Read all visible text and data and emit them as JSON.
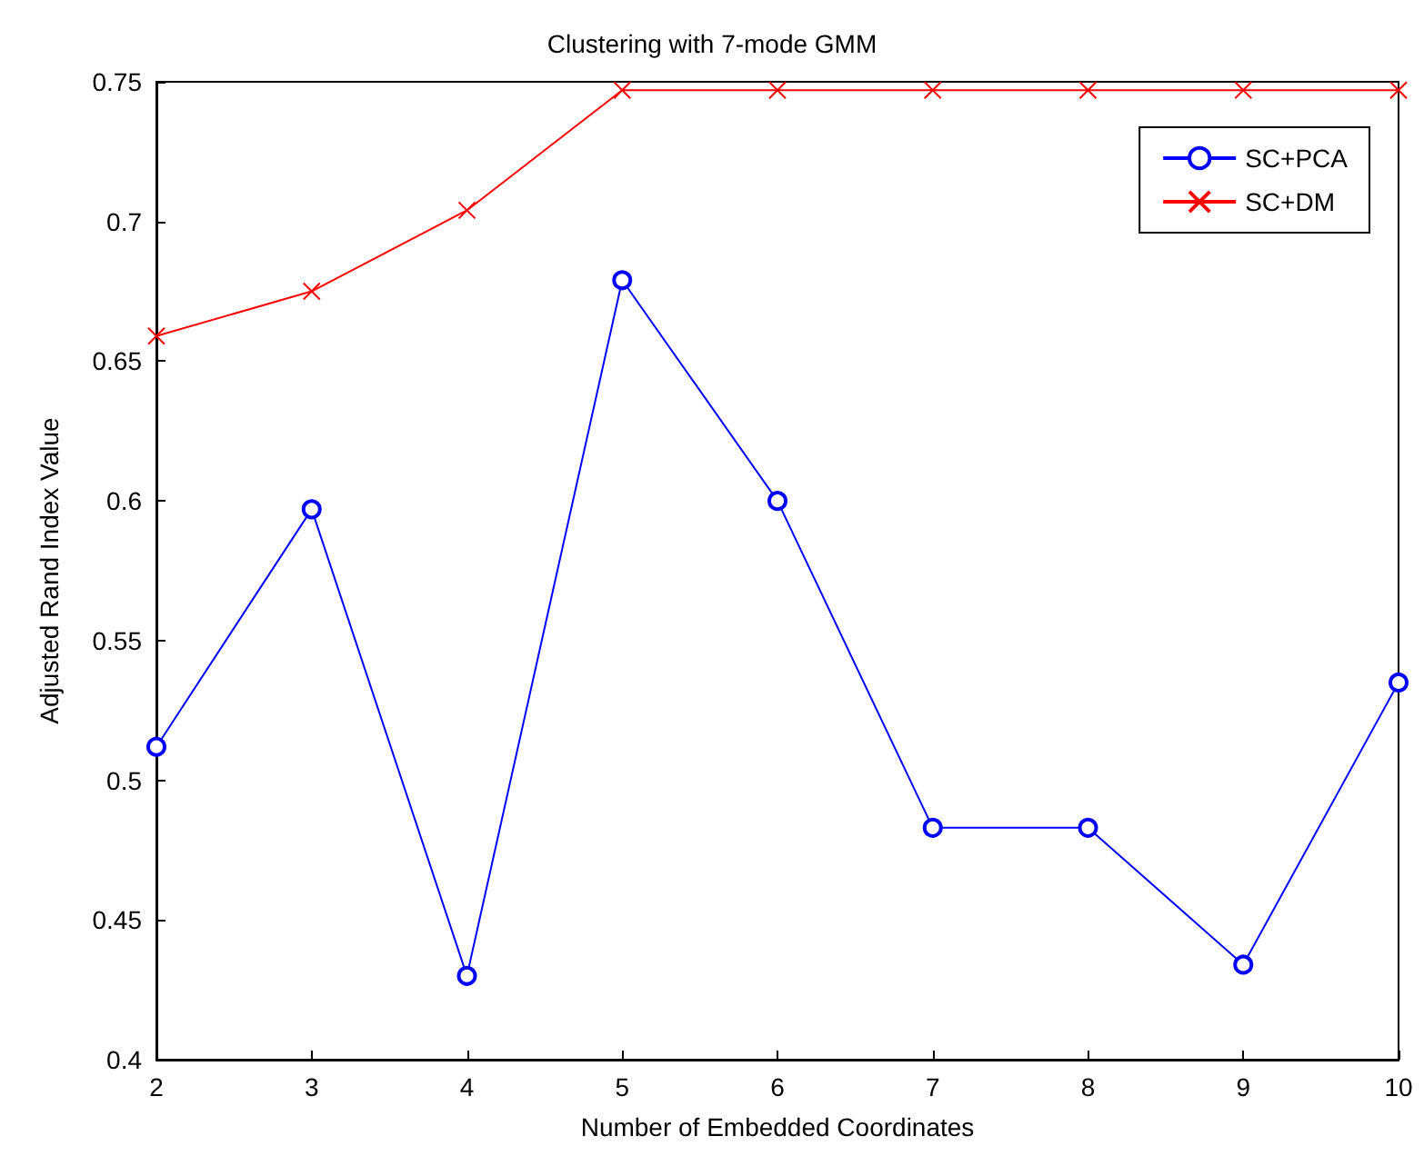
{
  "chart_data": {
    "type": "line",
    "title": "Clustering with 7-mode GMM",
    "xlabel": "Number of Embedded Coordinates",
    "ylabel": "Adjusted Rand Index Value",
    "x": [
      2,
      3,
      4,
      5,
      6,
      7,
      8,
      9,
      10
    ],
    "series": [
      {
        "name": "SC+PCA",
        "color": "#0000ff",
        "marker": "circle",
        "values": [
          0.512,
          0.597,
          0.43,
          0.679,
          0.6,
          0.483,
          0.483,
          0.434,
          0.535
        ]
      },
      {
        "name": "SC+DM",
        "color": "#ff0000",
        "marker": "cross",
        "values": [
          0.659,
          0.675,
          0.704,
          0.747,
          0.747,
          0.747,
          0.747,
          0.747,
          0.747
        ]
      }
    ],
    "xlim": [
      2,
      10
    ],
    "xticks": [
      2,
      3,
      4,
      5,
      6,
      7,
      8,
      9,
      10
    ],
    "ylim": [
      0.4,
      0.75
    ],
    "yticks": [
      0.4,
      0.45,
      0.5,
      0.55,
      0.6,
      0.65,
      0.7,
      0.75
    ],
    "grid": false,
    "legend": "top right",
    "line_style": "solid"
  }
}
